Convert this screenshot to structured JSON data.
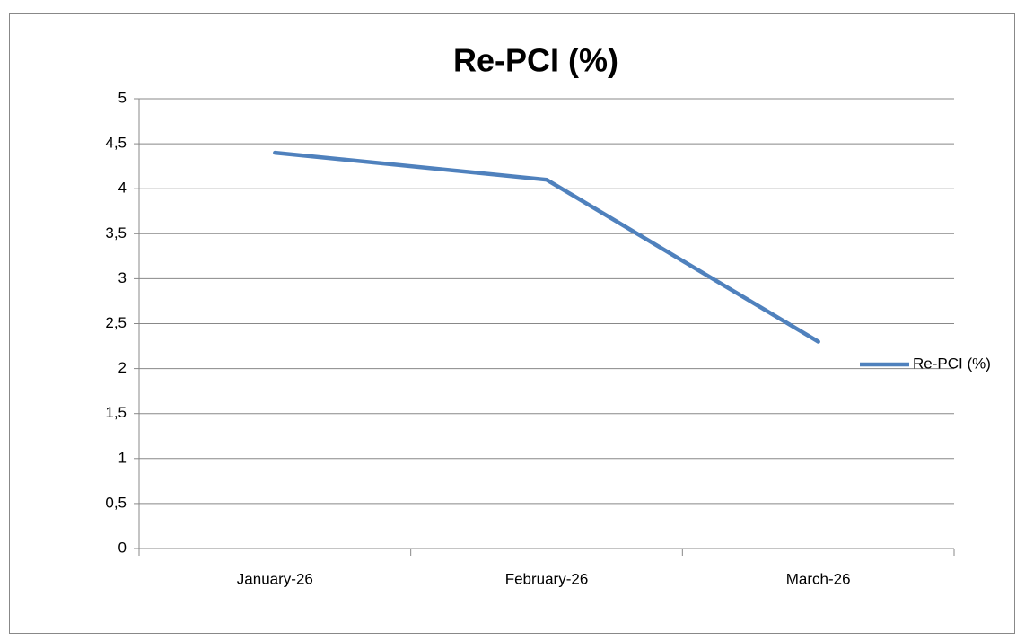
{
  "chart_data": {
    "type": "line",
    "title": "Re-PCI (%)",
    "categories": [
      "January-26",
      "February-26",
      "March-26"
    ],
    "series": [
      {
        "name": "Re-PCI (%)",
        "color": "#4f81bd",
        "values": [
          4.4,
          4.1,
          2.3
        ]
      }
    ],
    "ylim": [
      0,
      5
    ],
    "yticks": [
      0,
      {
        "value": 0.5,
        "label": "0,5"
      },
      1,
      {
        "value": 1.5,
        "label": "1,5"
      },
      2,
      {
        "value": 2.5,
        "label": "2,5"
      },
      3,
      {
        "value": 3.5,
        "label": "3,5"
      },
      4,
      {
        "value": 4.5,
        "label": "4,5"
      },
      5
    ],
    "grid": true,
    "legend": "right"
  }
}
